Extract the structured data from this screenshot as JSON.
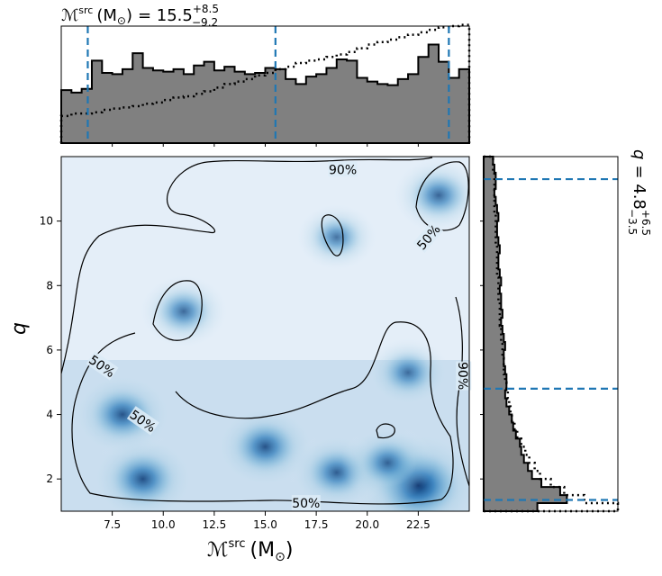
{
  "chart_data": {
    "type": "corner",
    "panels": [
      {
        "name": "top-marginal",
        "type": "histogram",
        "title": {
          "symbol": "ℳ",
          "sup": "src",
          "unit": "(M",
          "unit_sub": "⊙",
          "unit_close": ")",
          "eq": "= 15.5",
          "plus": "+8.5",
          "minus": "−9.2"
        },
        "xlim": [
          5.0,
          25.0
        ],
        "bin_edges": [
          5.0,
          5.5,
          6.0,
          6.5,
          7.0,
          7.5,
          8.0,
          8.5,
          9.0,
          9.5,
          10.0,
          10.5,
          11.0,
          11.5,
          12.0,
          12.5,
          13.0,
          13.5,
          14.0,
          14.5,
          15.0,
          15.5,
          16.0,
          16.5,
          17.0,
          17.5,
          18.0,
          18.5,
          19.0,
          19.5,
          20.0,
          20.5,
          21.0,
          21.5,
          22.0,
          22.5,
          23.0,
          23.5,
          24.0,
          24.5,
          25.0
        ],
        "posterior_density": [
          0.43,
          0.41,
          0.44,
          0.67,
          0.57,
          0.56,
          0.6,
          0.73,
          0.61,
          0.59,
          0.58,
          0.6,
          0.56,
          0.63,
          0.66,
          0.59,
          0.62,
          0.58,
          0.56,
          0.57,
          0.61,
          0.6,
          0.52,
          0.48,
          0.54,
          0.56,
          0.61,
          0.68,
          0.67,
          0.53,
          0.5,
          0.48,
          0.47,
          0.52,
          0.56,
          0.7,
          0.8,
          0.66,
          0.53,
          0.6
        ],
        "prior_density": [
          0.22,
          0.24,
          0.24,
          0.25,
          0.27,
          0.28,
          0.29,
          0.3,
          0.32,
          0.33,
          0.35,
          0.37,
          0.38,
          0.4,
          0.42,
          0.45,
          0.48,
          0.5,
          0.52,
          0.55,
          0.57,
          0.6,
          0.62,
          0.65,
          0.67,
          0.68,
          0.7,
          0.72,
          0.74,
          0.77,
          0.8,
          0.82,
          0.84,
          0.86,
          0.88,
          0.9,
          0.92,
          0.94,
          0.95,
          0.96
        ],
        "credible_lines": [
          6.3,
          15.5,
          24.0
        ],
        "ylim": [
          0,
          0.95
        ]
      },
      {
        "name": "joint-density",
        "type": "heatmap",
        "xlabel": {
          "symbol": "ℳ",
          "sup": "src",
          "unit": "(M",
          "unit_sub": "⊙",
          "unit_close": ")"
        },
        "ylabel": "q",
        "xlim": [
          5.0,
          25.0
        ],
        "ylim": [
          1.0,
          12.0
        ],
        "xticks": [
          "7.5",
          "10.0",
          "12.5",
          "15.0",
          "17.5",
          "20.0",
          "22.5"
        ],
        "xtick_values": [
          7.5,
          10.0,
          12.5,
          15.0,
          17.5,
          20.0,
          22.5
        ],
        "yticks": [
          "2",
          "4",
          "6",
          "8",
          "10"
        ],
        "ytick_values": [
          2,
          4,
          6,
          8,
          10
        ],
        "density_peaks": [
          {
            "x": 22.5,
            "y": 1.8,
            "weight": 1.0
          },
          {
            "x": 8.0,
            "y": 4.0,
            "weight": 0.55
          },
          {
            "x": 9.0,
            "y": 2.0,
            "weight": 0.6
          },
          {
            "x": 15.0,
            "y": 3.0,
            "weight": 0.55
          },
          {
            "x": 18.5,
            "y": 2.2,
            "weight": 0.45
          },
          {
            "x": 21.0,
            "y": 2.5,
            "weight": 0.4
          },
          {
            "x": 11.0,
            "y": 7.2,
            "weight": 0.35
          },
          {
            "x": 23.5,
            "y": 10.8,
            "weight": 0.4
          },
          {
            "x": 22.0,
            "y": 5.3,
            "weight": 0.3
          },
          {
            "x": 18.5,
            "y": 9.5,
            "weight": 0.25
          }
        ],
        "contour_labels": [
          {
            "text": "90%",
            "x": 18.8,
            "y": 11.6
          },
          {
            "text": "90%",
            "x": 24.7,
            "y": 5.2
          },
          {
            "text": "50%",
            "x": 7.0,
            "y": 5.5
          },
          {
            "text": "50%",
            "x": 9.0,
            "y": 3.8
          },
          {
            "text": "50%",
            "x": 23.0,
            "y": 9.5
          },
          {
            "text": "50%",
            "x": 17.0,
            "y": 1.25
          }
        ]
      },
      {
        "name": "right-marginal",
        "type": "histogram",
        "orientation": "horizontal",
        "title": {
          "symbol": "q",
          "eq": "= 4.8",
          "plus": "+6.5",
          "minus": "−3.5"
        },
        "ylim": [
          1.0,
          12.0
        ],
        "bin_edges": [
          1.0,
          1.25,
          1.5,
          1.75,
          2.0,
          2.25,
          2.5,
          2.75,
          3.0,
          3.25,
          3.5,
          3.75,
          4.0,
          4.25,
          4.5,
          4.75,
          5.0,
          5.25,
          5.5,
          5.75,
          6.0,
          6.25,
          6.5,
          6.75,
          7.0,
          7.25,
          7.5,
          7.75,
          8.0,
          8.25,
          8.5,
          8.75,
          9.0,
          9.25,
          9.5,
          9.75,
          10.0,
          10.25,
          10.5,
          10.75,
          11.0,
          11.25,
          11.5,
          11.75,
          12.0
        ],
        "posterior_density": [
          0.4,
          0.62,
          0.57,
          0.43,
          0.36,
          0.33,
          0.3,
          0.28,
          0.27,
          0.24,
          0.22,
          0.21,
          0.19,
          0.17,
          0.16,
          0.17,
          0.17,
          0.16,
          0.15,
          0.15,
          0.16,
          0.15,
          0.14,
          0.13,
          0.14,
          0.13,
          0.13,
          0.12,
          0.13,
          0.12,
          0.11,
          0.11,
          0.12,
          0.11,
          0.1,
          0.1,
          0.11,
          0.1,
          0.09,
          0.08,
          0.09,
          0.09,
          0.08,
          0.07
        ],
        "prior_density": [
          1.0,
          0.75,
          0.6,
          0.5,
          0.42,
          0.38,
          0.34,
          0.31,
          0.28,
          0.25,
          0.23,
          0.21,
          0.2,
          0.19,
          0.18,
          0.17,
          0.16,
          0.15,
          0.15,
          0.14,
          0.14,
          0.13,
          0.13,
          0.12,
          0.12,
          0.12,
          0.11,
          0.11,
          0.11,
          0.1,
          0.1,
          0.1,
          0.1,
          0.09,
          0.09,
          0.09,
          0.09,
          0.08,
          0.08,
          0.08,
          0.08,
          0.08,
          0.07,
          0.07
        ],
        "credible_lines": [
          1.35,
          4.8,
          11.3
        ],
        "xlim": [
          0,
          1.0
        ]
      }
    ],
    "colors": {
      "hist_fill": "#808080",
      "hist_edge": "#000000",
      "credible_line": "#1f77b4",
      "heat_low": "#f7fbff",
      "heat_high": "#08306b"
    }
  }
}
